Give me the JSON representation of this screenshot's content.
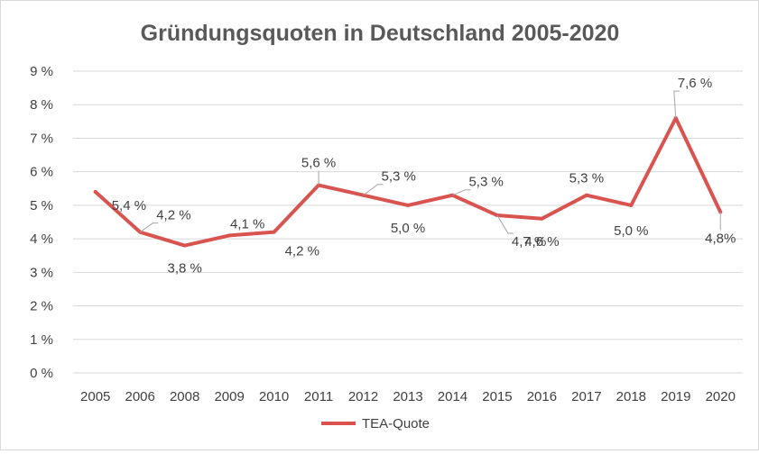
{
  "chart_data": {
    "type": "line",
    "title": "Gründungsquoten  in Deutschland 2005-2020",
    "xlabel": "",
    "ylabel": "",
    "categories": [
      "2005",
      "2006",
      "2008",
      "2009",
      "2010",
      "2011",
      "2012",
      "2013",
      "2014",
      "2015",
      "2016",
      "2017",
      "2018",
      "2019",
      "2020"
    ],
    "series": [
      {
        "name": "TEA-Quote",
        "color": "#d9534f",
        "values": [
          5.4,
          4.2,
          3.8,
          4.1,
          4.2,
          5.6,
          5.3,
          5.0,
          5.3,
          4.7,
          4.6,
          5.3,
          5.0,
          7.6,
          4.8
        ],
        "labels": [
          "5,4 %",
          "4,2 %",
          "3,8 %",
          "4,1 %",
          "4,2 %",
          "5,6 %",
          "5,3 %",
          "5,0 %",
          "5,3 %",
          "4,7 %",
          "4,6 %",
          "5,3 %",
          "5,0 %",
          "7,6 %",
          "4,8%"
        ]
      }
    ],
    "ylim": [
      0,
      9
    ],
    "yticks": [
      "0 %",
      "1 %",
      "2 %",
      "3 %",
      "4 %",
      "5 %",
      "6 %",
      "7 %",
      "8 %",
      "9 %"
    ],
    "grid": true,
    "legend": "bottom"
  }
}
